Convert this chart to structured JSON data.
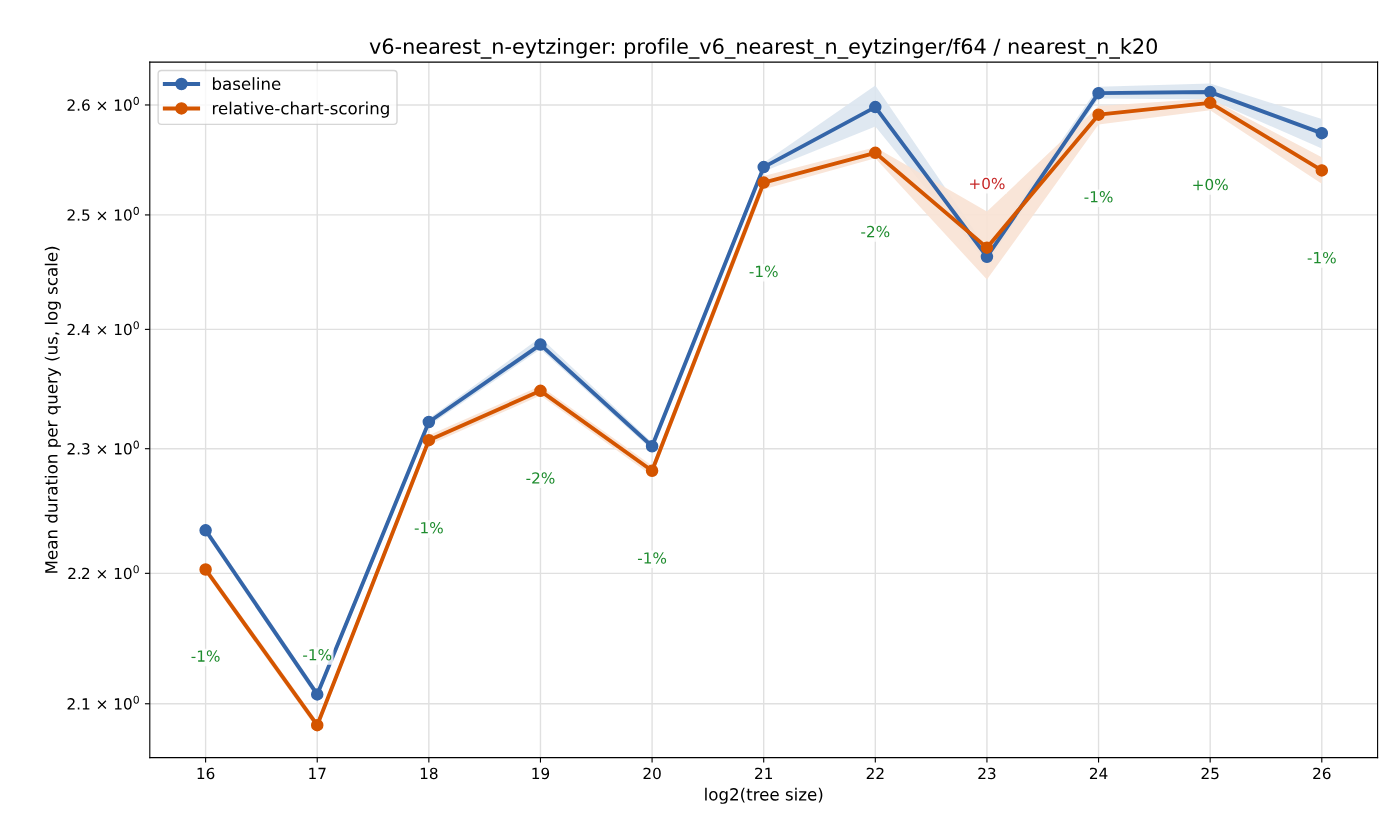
{
  "chart_data": {
    "type": "line",
    "title": "v6-nearest_n-eytzinger: profile_v6_nearest_n_eytzinger/f64 / nearest_n_k20",
    "xlabel": "log2(tree size)",
    "ylabel": "Mean duration per query (us, log scale)",
    "x": [
      16,
      17,
      18,
      19,
      20,
      21,
      22,
      23,
      24,
      25,
      26
    ],
    "series": [
      {
        "name": "baseline",
        "color": "#3465a8",
        "values": [
          2.234,
          2.107,
          2.322,
          2.387,
          2.302,
          2.543,
          2.598,
          2.463,
          2.611,
          2.612,
          2.574
        ],
        "lower": [
          2.231,
          2.104,
          2.319,
          2.383,
          2.299,
          2.539,
          2.58,
          2.457,
          2.606,
          2.605,
          2.56
        ],
        "upper": [
          2.237,
          2.11,
          2.325,
          2.393,
          2.305,
          2.547,
          2.618,
          2.47,
          2.617,
          2.62,
          2.587
        ]
      },
      {
        "name": "relative-chart-scoring",
        "color": "#d45500",
        "values": [
          2.203,
          2.084,
          2.307,
          2.348,
          2.282,
          2.529,
          2.556,
          2.471,
          2.591,
          2.602,
          2.54
        ],
        "lower": [
          2.2,
          2.081,
          2.303,
          2.344,
          2.278,
          2.523,
          2.551,
          2.443,
          2.582,
          2.595,
          2.528
        ],
        "upper": [
          2.206,
          2.087,
          2.311,
          2.352,
          2.286,
          2.535,
          2.561,
          2.503,
          2.599,
          2.606,
          2.552
        ]
      }
    ],
    "annotations": [
      {
        "text": "-1%",
        "x": 16,
        "y": 2.135
      },
      {
        "text": "-1%",
        "x": 17,
        "y": 2.136
      },
      {
        "text": "-1%",
        "x": 18,
        "y": 2.235
      },
      {
        "text": "-2%",
        "x": 19,
        "y": 2.275
      },
      {
        "text": "-1%",
        "x": 20,
        "y": 2.211
      },
      {
        "text": "-1%",
        "x": 21,
        "y": 2.449
      },
      {
        "text": "-2%",
        "x": 22,
        "y": 2.484
      },
      {
        "text": "+0%",
        "x": 23,
        "y": 2.527
      },
      {
        "text": "-1%",
        "x": 24,
        "y": 2.515
      },
      {
        "text": "+0%",
        "x": 25,
        "y": 2.526
      },
      {
        "text": "-1%",
        "x": 26,
        "y": 2.461
      }
    ],
    "log": "y",
    "xlim": [
      15.5,
      26.5
    ],
    "ylim": [
      2.06,
      2.64
    ],
    "xticks": [
      16,
      17,
      18,
      19,
      20,
      21,
      22,
      23,
      24,
      25,
      26
    ],
    "yticks": [
      {
        "value": 2.1,
        "label": "2.1 × 10$^{0}$"
      },
      {
        "value": 2.2,
        "label": "2.2 × 10$^{0}$"
      },
      {
        "value": 2.3,
        "label": "2.3 × 10$^{0}$"
      },
      {
        "value": 2.4,
        "label": "2.4 × 10$^{0}$"
      },
      {
        "value": 2.5,
        "label": "2.5 × 10$^{0}$"
      },
      {
        "value": 2.6,
        "label": "2.6 × 10$^{0}$"
      }
    ],
    "grid": true,
    "legend": "top left",
    "marker": "circle",
    "line_style": "solid"
  }
}
